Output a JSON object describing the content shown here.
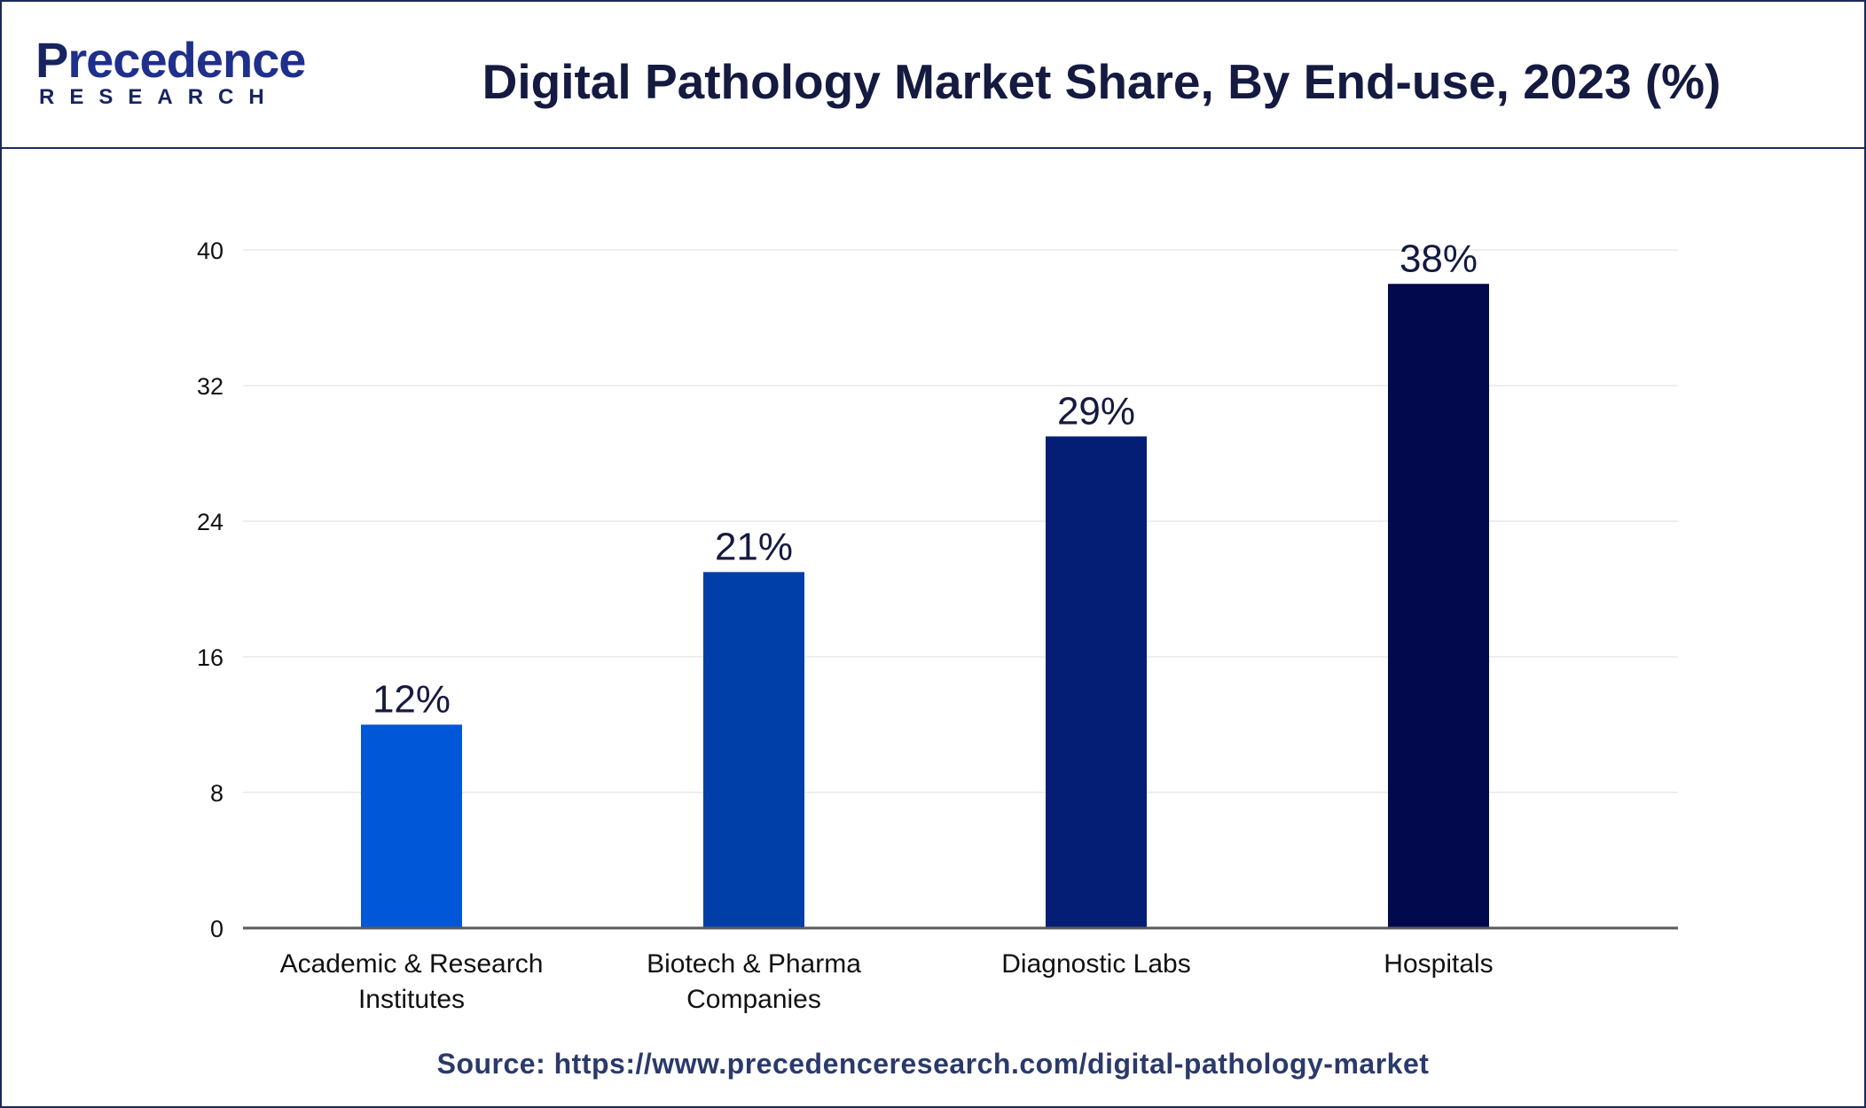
{
  "header": {
    "logo_initial": "P",
    "logo_rest": "recedence",
    "logo_sub": "RESEARCH",
    "title": "Digital Pathology Market Share, By End-use, 2023 (%)"
  },
  "footer": {
    "source": "Source: https://www.precedenceresearch.com/digital-pathology-market"
  },
  "chart_data": {
    "type": "bar",
    "title": "Digital Pathology Market Share, By End-use, 2023 (%)",
    "xlabel": "",
    "ylabel": "",
    "categories": [
      [
        "Academic & Research",
        "Institutes"
      ],
      [
        "Biotech & Pharma",
        "Companies"
      ],
      [
        "Diagnostic Labs"
      ],
      [
        "Hospitals"
      ]
    ],
    "values": [
      12,
      21,
      29,
      38
    ],
    "value_labels": [
      "12%",
      "21%",
      "29%",
      "38%"
    ],
    "bar_colors": [
      "#0057d8",
      "#003ea8",
      "#031e74",
      "#02094c"
    ],
    "ylim": [
      0,
      40
    ],
    "yticks": [
      0,
      8,
      16,
      24,
      32,
      40
    ],
    "grid": true,
    "legend": "none"
  }
}
